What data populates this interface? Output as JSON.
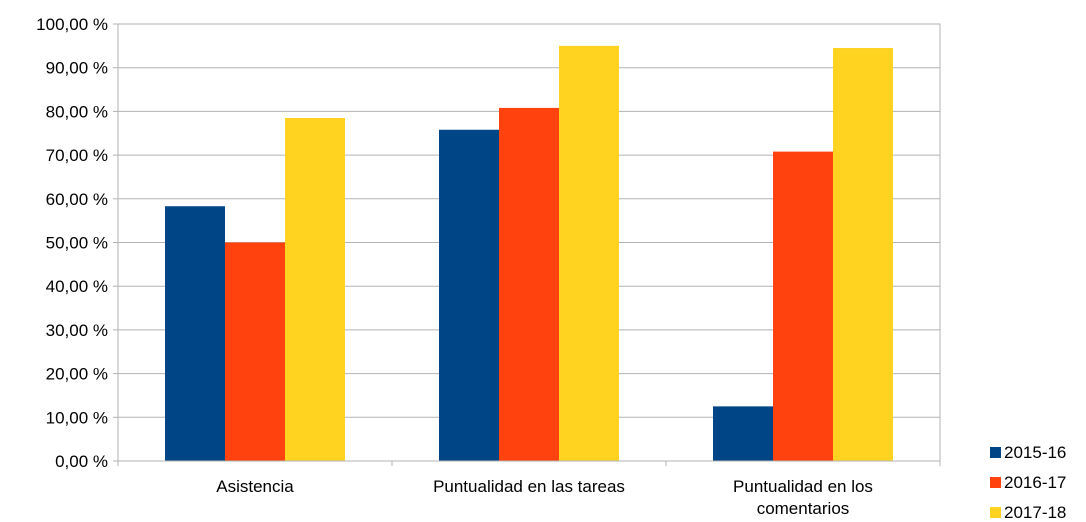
{
  "chart_data": {
    "type": "bar",
    "categories": [
      [
        "Asistencia"
      ],
      [
        "Puntualidad en las tareas"
      ],
      [
        "Puntualidad en los",
        "comentarios"
      ]
    ],
    "series": [
      {
        "name": "2015-16",
        "color": "#004586",
        "values": [
          58.3,
          75.8,
          12.5
        ]
      },
      {
        "name": "2016-17",
        "color": "#ff420e",
        "values": [
          50.0,
          80.8,
          70.8
        ]
      },
      {
        "name": "2017-18",
        "color": "#ffd320",
        "values": [
          78.5,
          95.0,
          94.5
        ]
      }
    ],
    "ylim": [
      0,
      100
    ],
    "yticks": [
      0,
      10,
      20,
      30,
      40,
      50,
      60,
      70,
      80,
      90,
      100
    ],
    "ytick_labels": [
      "0,00 %",
      "10,00 %",
      "20,00 %",
      "30,00 %",
      "40,00 %",
      "50,00 %",
      "60,00 %",
      "70,00 %",
      "80,00 %",
      "90,00 %",
      "100,00 %"
    ],
    "grid": true,
    "legend_position": "bottom-right",
    "title": "",
    "xlabel": "",
    "ylabel": ""
  }
}
